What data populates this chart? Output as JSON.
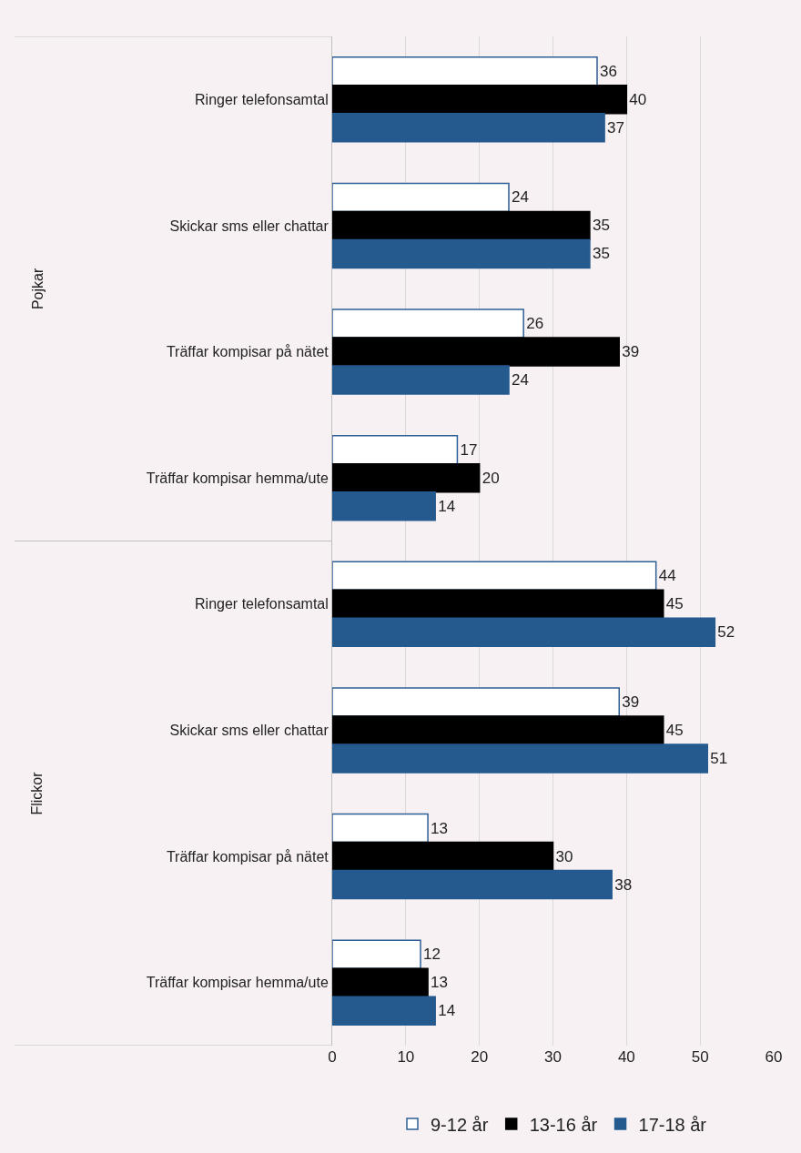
{
  "chart_data": {
    "type": "bar",
    "orientation": "horizontal",
    "categories": [
      "Ringer telefonsamtal",
      "Skickar sms eller chattar",
      "Träffar kompisar på nätet",
      "Träffar kompisar hemma/ute",
      "Ringer telefonsamtal",
      "Skickar sms eller chattar",
      "Träffar kompisar på nätet",
      "Träffar kompisar hemma/ute"
    ],
    "series": [
      {
        "name": "9-12 år",
        "color": "#2e5f95",
        "values": [
          36,
          24,
          26,
          17,
          44,
          39,
          13,
          12
        ]
      },
      {
        "name": "13-16 år",
        "color": "#000000",
        "values": [
          40,
          35,
          39,
          20,
          45,
          45,
          30,
          13
        ]
      },
      {
        "name": "17-18 år",
        "color": "#255a8f",
        "values": [
          37,
          35,
          24,
          14,
          52,
          51,
          38,
          14
        ]
      }
    ],
    "xlim": [
      0,
      60
    ],
    "xticks": [
      0,
      10,
      20,
      30,
      40,
      50,
      60
    ],
    "annotations": [
      "Pojkar",
      "Flickor"
    ],
    "data_labels": true,
    "grid": "x",
    "legend": "bottom"
  }
}
